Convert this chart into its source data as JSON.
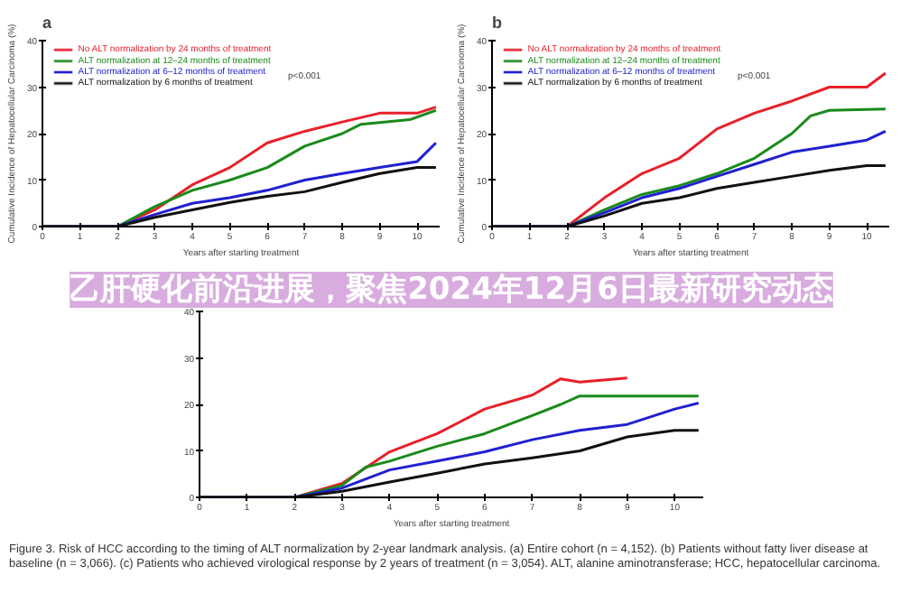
{
  "chart_data": [
    {
      "type": "line",
      "title": "a",
      "xlabel": "Years after starting treatment",
      "ylabel": "Cumulative Incidence of Hepatocellular Carcinoma (%)",
      "xlim": [
        0,
        10.6
      ],
      "ylim": [
        0,
        40
      ],
      "xticks": [
        0,
        1,
        2,
        3,
        4,
        5,
        6,
        7,
        8,
        9,
        10
      ],
      "yticks": [
        0,
        10,
        20,
        30,
        40
      ],
      "legend": "top left",
      "grid": false,
      "annotations": [
        "p<0.001"
      ],
      "series": [
        {
          "name": "No ALT normalization by 24 months of treatment",
          "color": "#e8202a",
          "x": [
            0,
            2,
            3,
            4,
            5,
            6,
            7,
            8,
            9,
            10,
            10.5
          ],
          "values": [
            0,
            0,
            3.6,
            9,
            12.7,
            18,
            20.5,
            22.5,
            24.4,
            24.4,
            25.7
          ]
        },
        {
          "name": "ALT normalization at 12–24 months of treatment",
          "color": "#1a8a1a",
          "x": [
            0,
            2,
            3,
            4,
            5,
            6,
            7,
            8,
            8.5,
            9.8,
            10.5
          ],
          "values": [
            0,
            0,
            4.3,
            7.8,
            10,
            12.7,
            17.3,
            20,
            22,
            23,
            25
          ]
        },
        {
          "name": "ALT normalization at 6–12 months of treatment",
          "color": "#2020d0",
          "x": [
            0,
            2,
            3,
            4,
            5,
            6,
            7,
            8,
            9,
            10,
            10.5
          ],
          "values": [
            0,
            0,
            2.6,
            5,
            6.2,
            7.8,
            10,
            11.4,
            12.7,
            14,
            18
          ]
        },
        {
          "name": "ALT normalization by 6 months of treatment",
          "color": "#111111",
          "x": [
            0,
            2,
            3,
            4,
            5,
            6,
            7,
            8,
            9,
            10,
            10.5
          ],
          "values": [
            0,
            0,
            2,
            3.6,
            5.2,
            6.5,
            7.5,
            9.5,
            11.4,
            12.7,
            12.7
          ]
        }
      ]
    },
    {
      "type": "line",
      "title": "b",
      "xlabel": "Years after starting treatment",
      "ylabel": "Cumulative Incidence of Hepatocellular Carcinoma (%)",
      "xlim": [
        0,
        10.6
      ],
      "ylim": [
        0,
        40
      ],
      "xticks": [
        0,
        1,
        2,
        3,
        4,
        5,
        6,
        7,
        8,
        9,
        10
      ],
      "yticks": [
        0,
        10,
        20,
        30,
        40
      ],
      "legend": "top left",
      "grid": false,
      "annotations": [
        "p<0.001"
      ],
      "series": [
        {
          "name": "No ALT normalization by 24 months of treatment",
          "color": "#e8202a",
          "x": [
            0,
            2,
            3,
            4,
            5,
            6,
            7,
            8,
            9,
            10,
            10.5
          ],
          "values": [
            0,
            0,
            6.2,
            11.4,
            14.7,
            21,
            24.4,
            27,
            30,
            30,
            33
          ]
        },
        {
          "name": "ALT normalization at 12–24 months of treatment",
          "color": "#1a8a1a",
          "x": [
            0,
            2,
            3,
            4,
            5,
            6,
            7,
            8,
            8.5,
            9,
            10.5
          ],
          "values": [
            0,
            0,
            3.6,
            6.9,
            8.8,
            11.4,
            14.7,
            20,
            23.8,
            25,
            25.3
          ]
        },
        {
          "name": "ALT normalization at 6–12 months of treatment",
          "color": "#2020d0",
          "x": [
            0,
            2,
            3,
            4,
            5,
            6,
            7,
            8,
            9,
            10,
            10.5
          ],
          "values": [
            0,
            0,
            3,
            6.2,
            8.2,
            10.8,
            13.4,
            16,
            17.3,
            18.6,
            20.5
          ]
        },
        {
          "name": "ALT normalization by 6 months of treatment",
          "color": "#111111",
          "x": [
            0,
            2,
            3,
            4,
            5,
            6,
            7,
            8,
            9,
            10,
            10.5
          ],
          "values": [
            0,
            0,
            2.3,
            5,
            6.2,
            8.2,
            9.5,
            10.8,
            12.1,
            13.1,
            13.1
          ]
        }
      ]
    },
    {
      "type": "line",
      "title": "乙肝硬化前沿进展，聚焦2024年12月6日最新研究动态",
      "xlabel": "Years after starting treatment",
      "xlim": [
        0,
        10.6
      ],
      "ylim": [
        0,
        40
      ],
      "xticks": [
        0,
        1,
        2,
        3,
        4,
        5,
        6,
        7,
        8,
        9,
        10
      ],
      "yticks": [
        0,
        10,
        20,
        30,
        40
      ],
      "grid": false,
      "annotations": [
        "Figure 3. Risk of HCC according to the timing of ALT normalization by 2-year landmark analysis. (a) Entire cohort (n = 4,152). (b) Patients without fatty liver disease at baseline (n = 3,066). (c) Patients who achieved virological response by 2 years of treatment (n = 3,054). ALT, alanine aminotransferase; HCC, hepatocellular carcinoma."
      ],
      "series": [
        {
          "color": "#e8202a",
          "x": [
            0,
            2,
            3,
            4,
            5,
            6,
            7,
            7.6,
            8,
            9
          ],
          "values": [
            0,
            0,
            3,
            9.8,
            13.7,
            19,
            22,
            25.5,
            24.8,
            25.7
          ]
        },
        {
          "color": "#1a8a1a",
          "x": [
            0,
            2,
            3,
            3.5,
            4,
            5,
            6,
            7,
            7.6,
            8,
            10.5
          ],
          "values": [
            0,
            0,
            2.6,
            6.5,
            7.8,
            11,
            13.7,
            17.6,
            20,
            21.8,
            21.8
          ]
        },
        {
          "color": "#2020d0",
          "x": [
            0,
            2,
            3,
            4,
            5,
            6,
            7,
            8,
            9,
            10,
            10.5
          ],
          "values": [
            0,
            0,
            2,
            5.9,
            7.8,
            9.8,
            12.4,
            14.4,
            15.7,
            19,
            20.3
          ]
        },
        {
          "color": "#111111",
          "x": [
            0,
            2,
            3,
            4,
            5,
            6,
            7,
            8,
            9,
            10,
            10.5
          ],
          "values": [
            0,
            0,
            1.3,
            3.3,
            5.2,
            7.2,
            8.5,
            10,
            13,
            14.4,
            14.4
          ]
        }
      ]
    }
  ]
}
